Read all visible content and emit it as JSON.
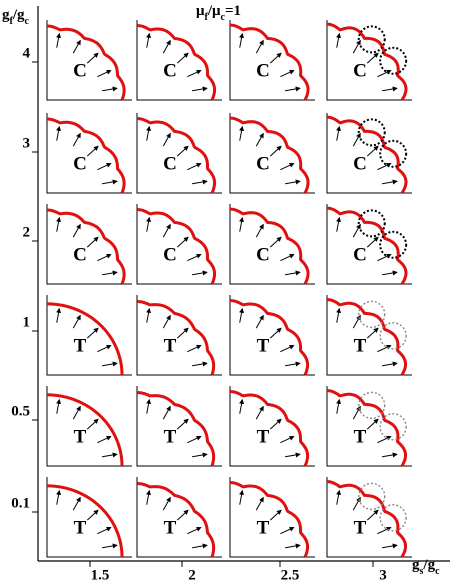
{
  "title": [
    "μ",
    "f",
    "/μ",
    "c",
    "=1"
  ],
  "y_axis": {
    "label": [
      "g",
      "f",
      "/g",
      "c"
    ],
    "ticks": [
      "4",
      "3",
      "2",
      "1",
      "0.5",
      "0.1"
    ]
  },
  "x_axis": {
    "label": [
      "g",
      "s",
      "/g",
      "c"
    ],
    "ticks": [
      "1.5",
      "2",
      "2.5",
      "3"
    ]
  },
  "panels": {
    "rows": [
      {
        "labels": [
          "C",
          "C",
          "C",
          "C"
        ]
      },
      {
        "labels": [
          "C",
          "C",
          "C",
          "C"
        ]
      },
      {
        "labels": [
          "C",
          "C",
          "C",
          "C"
        ]
      },
      {
        "labels": [
          "T",
          "T",
          "T",
          "T"
        ]
      },
      {
        "labels": [
          "T",
          "T",
          "T",
          "T"
        ]
      },
      {
        "labels": [
          "T",
          "T",
          "T",
          "T"
        ]
      }
    ]
  }
}
